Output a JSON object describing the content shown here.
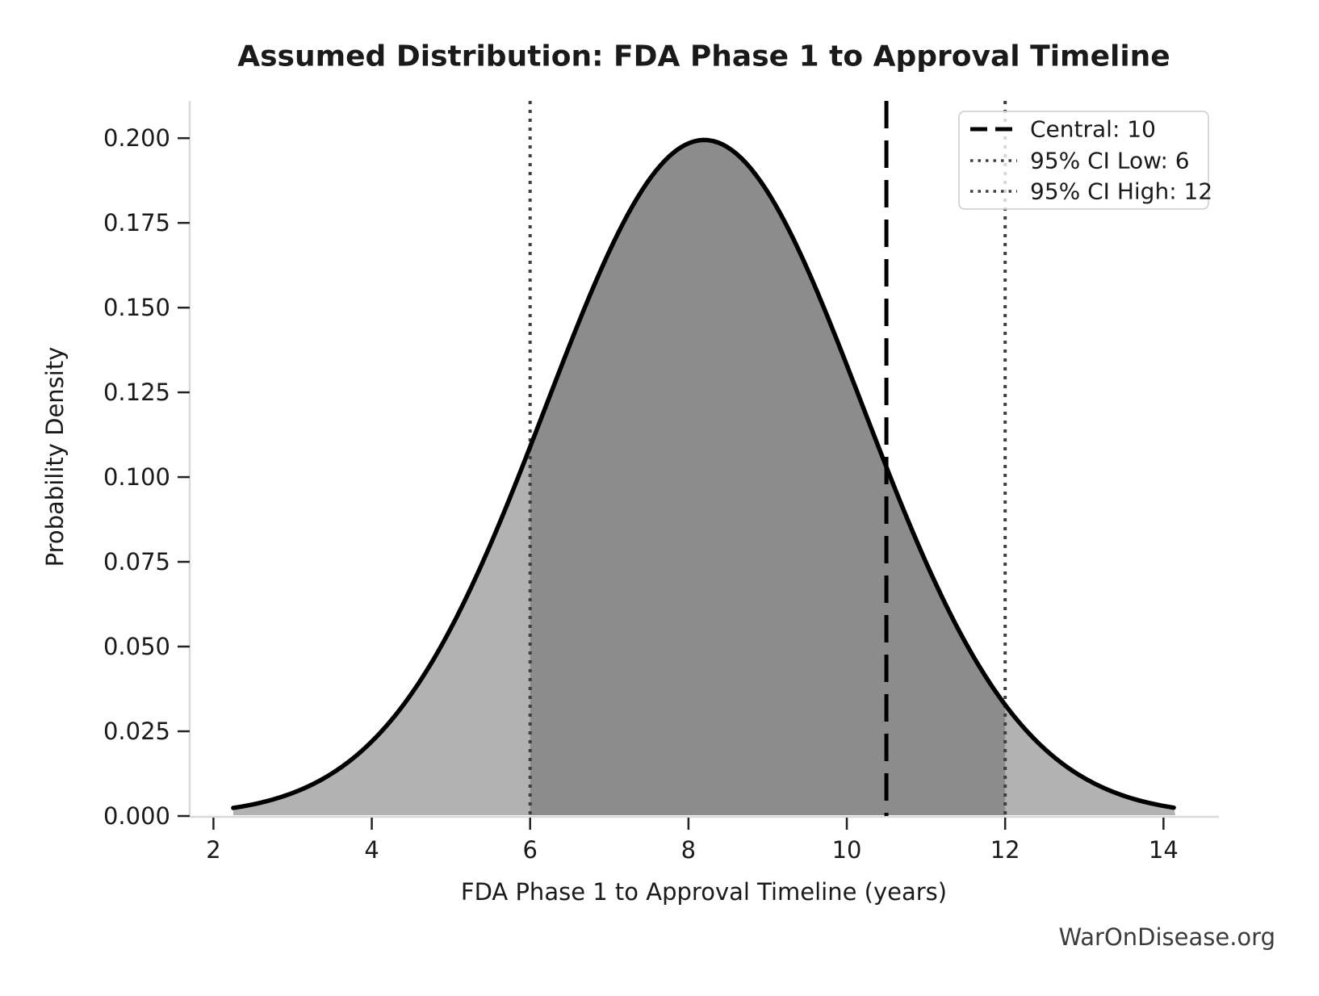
{
  "title": "Assumed Distribution: FDA Phase 1 to Approval Timeline",
  "x_axis": {
    "label": "FDA Phase 1 to Approval Timeline (years)",
    "tick_labels": [
      "2",
      "4",
      "6",
      "8",
      "10",
      "12",
      "14"
    ]
  },
  "y_axis": {
    "label": "Probability Density",
    "tick_labels": [
      "0.000",
      "0.025",
      "0.050",
      "0.075",
      "0.100",
      "0.125",
      "0.150",
      "0.175",
      "0.200"
    ]
  },
  "legend": {
    "items": [
      {
        "label": "Central: 10",
        "style": "dashed",
        "color": "#000000"
      },
      {
        "label": "95% CI Low: 6",
        "style": "dotted",
        "color": "#3f3f3f"
      },
      {
        "label": "95% CI High: 12",
        "style": "dotted",
        "color": "#3f3f3f"
      }
    ]
  },
  "watermark": "WarOnDisease.org",
  "chart_data": {
    "type": "area",
    "title": "Assumed Distribution: FDA Phase 1 to Approval Timeline",
    "xlabel": "FDA Phase 1 to Approval Timeline (years)",
    "ylabel": "Probability Density",
    "xlim": [
      1.7,
      14.7
    ],
    "ylim": [
      0,
      0.211
    ],
    "x_ticks": [
      2,
      4,
      6,
      8,
      10,
      12,
      14
    ],
    "y_ticks": [
      0,
      0.025,
      0.05,
      0.075,
      0.1,
      0.125,
      0.15,
      0.175,
      0.2
    ],
    "grid": false,
    "legend_position": "upper right",
    "distribution": {
      "shape": "normal",
      "mean": 8.2,
      "sigma": 2.0,
      "peak_density": 0.199471,
      "x_start": 2.25,
      "x_end": 14.15
    },
    "curve_points": {
      "x": [
        2.25,
        2.75,
        3.25,
        3.75,
        4.25,
        4.75,
        5.25,
        5.75,
        6.25,
        6.75,
        7.25,
        7.75,
        8.25,
        8.75,
        9.25,
        9.75,
        10.25,
        10.75,
        11.25,
        11.75,
        12.25,
        12.75,
        13.25,
        13.75,
        14.15
      ],
      "y": [
        0.00239,
        0.00487,
        0.00933,
        0.01677,
        0.02838,
        0.04506,
        0.06721,
        0.09419,
        0.12401,
        0.15337,
        0.17819,
        0.19449,
        0.19941,
        0.19207,
        0.17379,
        0.14772,
        0.11796,
        0.08849,
        0.06235,
        0.04128,
        0.02566,
        0.015,
        0.00822,
        0.00424,
        0.00239
      ]
    },
    "vlines": {
      "central": 10.5,
      "ci_low": 6,
      "ci_high": 12
    },
    "shading": {
      "full_fill_color": "#b2b2b2",
      "ci_fill_color": "#8c8c8c",
      "ci_range": [
        6,
        12
      ]
    },
    "curve_color": "#000000",
    "spine_color": "#d9d9d9"
  }
}
